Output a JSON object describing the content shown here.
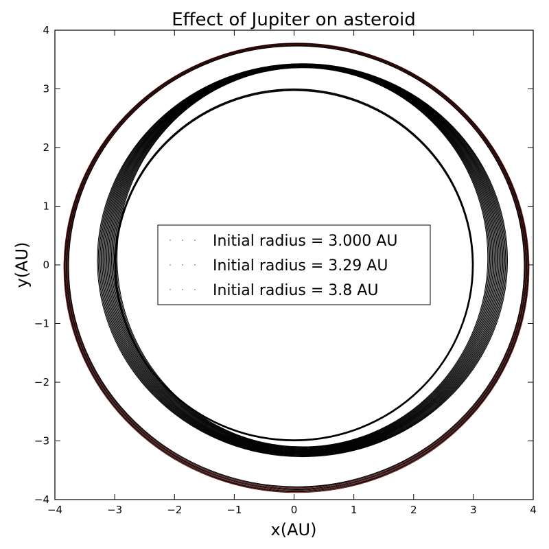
{
  "chart_data": {
    "type": "line",
    "title": "Effect of Jupiter on asteroid",
    "xlabel": "x(AU)",
    "ylabel": "y(AU)",
    "xlim": [
      -4,
      4
    ],
    "ylim": [
      -4,
      4
    ],
    "xticks": [
      -4,
      -3,
      -2,
      -1,
      0,
      1,
      2,
      3,
      4
    ],
    "yticks": [
      -4,
      -3,
      -2,
      -1,
      0,
      1,
      2,
      3,
      4
    ],
    "xtick_labels": [
      "−4",
      "−3",
      "−2",
      "−1",
      "0",
      "1",
      "2",
      "3",
      "4"
    ],
    "ytick_labels": [
      "−4",
      "−3",
      "−2",
      "−1",
      "0",
      "1",
      "2",
      "3",
      "4"
    ],
    "grid": false,
    "legend_position": "center",
    "series": [
      {
        "name": "Initial radius = 3.000 AU",
        "color": "#000000",
        "orbit": {
          "x_min": -3.0,
          "x_max": 3.0,
          "y_min": -3.0,
          "y_max": 3.0,
          "x_spread": 0.02,
          "y_spread": 0.02,
          "y_top_spread": 0.03,
          "loops": 4
        }
      },
      {
        "name": "Initial radius = 3.29 AU",
        "color": "#000000",
        "orbit": {
          "x_min": -3.29,
          "x_max": 3.57,
          "y_min": -3.27,
          "y_max": 3.43,
          "x_spread": 0.33,
          "y_spread": 0.17,
          "y_top_spread": 0.07,
          "loops": 22
        }
      },
      {
        "name": "Initial radius = 3.8 AU",
        "color": "#000000",
        "orbit": {
          "x_min": -3.85,
          "x_max": 3.93,
          "y_min": -3.88,
          "y_max": 3.78,
          "x_spread": 0.08,
          "y_spread": 0.1,
          "y_top_spread": 0.05,
          "loops": 9
        }
      }
    ],
    "orbit_accent_color": "#7a1a1a"
  }
}
